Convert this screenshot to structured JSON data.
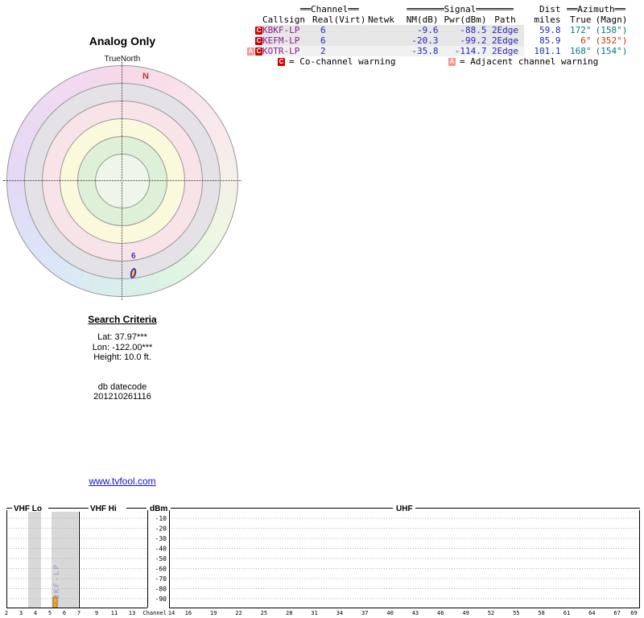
{
  "page": {
    "title": "Analog Only",
    "link": "www.tvfool.com"
  },
  "polar": {
    "true_north_label": "TrueNorth",
    "north_marker": "N",
    "marker_channel": "6"
  },
  "search_criteria": {
    "heading": "Search Criteria",
    "lat": "Lat: 37.97***",
    "lon": "Lon: -122.00***",
    "height": "Height: 10.0 ft.",
    "db_label": "db datecode",
    "db_value": "201210261116"
  },
  "table": {
    "group_headers": {
      "channel": "══Channel══",
      "signal": "═══════Signal═══════",
      "dist": "Dist",
      "azimuth": "══Azimuth══"
    },
    "columns": [
      "Callsign",
      "Real",
      "(Virt)",
      "Netwk",
      "NM(dB)",
      "Pwr(dBm)",
      "Path",
      "miles",
      "True",
      "(Magn)"
    ],
    "rows": [
      {
        "warnings": [
          "C"
        ],
        "callsign": "KBKF-LP",
        "real": "6",
        "virt": "",
        "netwk": "",
        "nm_db": "-9.6",
        "pwr_dbm": "-88.5",
        "path": "2Edge",
        "miles": "59.8",
        "true_az": "172°",
        "magn_az": "(158°)",
        "az_color": "#007b7b",
        "bg": "#e6e6e6"
      },
      {
        "warnings": [
          "C"
        ],
        "callsign": "KEFM-LP",
        "real": "6",
        "virt": "",
        "netwk": "",
        "nm_db": "-20.3",
        "pwr_dbm": "-99.2",
        "path": "2Edge",
        "miles": "85.9",
        "true_az": "6°",
        "magn_az": "(352°)",
        "az_color": "#cc3300",
        "bg": "#e6e6e6"
      },
      {
        "warnings": [
          "A",
          "C"
        ],
        "callsign": "KOTR-LP",
        "real": "2",
        "virt": "",
        "netwk": "",
        "nm_db": "-35.8",
        "pwr_dbm": "-114.7",
        "path": "2Edge",
        "miles": "101.1",
        "true_az": "168°",
        "magn_az": "(154°)",
        "az_color": "#007b7b",
        "bg": "#f1f1f1"
      }
    ],
    "legend": {
      "co_badge": "C",
      "co_text": "= Co-channel warning",
      "adj_badge": "A",
      "adj_text": "= Adjacent channel warning",
      "co_color": "#cc0000",
      "adj_color": "#ff9090"
    },
    "text_colors": {
      "callsign": "#8b1a8b",
      "numeric": "#2222bb"
    }
  },
  "chart_data": [
    {
      "type": "radar",
      "title": "Analog Only",
      "orientation_label": "TrueNorth",
      "north_marker": "N",
      "rings_outer_to_center": [
        "pastel-compass",
        "#e4e2e6",
        "#f8e3e8",
        "#fbf9dc",
        "#dff0d8",
        "#edf6e9"
      ],
      "signals": [
        {
          "callsign": "KBKF-LP",
          "channel": "6",
          "azimuth_true_deg": 172,
          "marker_fill": "#ffcf00",
          "marker_stroke": "#4b2dbb"
        }
      ]
    },
    {
      "type": "spectrum",
      "xlabel": "Channel",
      "ylabel": "dBm",
      "ylim": [
        -90,
        -10
      ],
      "y_ticks": [
        -10,
        -20,
        -30,
        -40,
        -50,
        -60,
        -70,
        -80,
        -90
      ],
      "sections": [
        {
          "label": "VHF Lo",
          "tick_channels": [
            2,
            3,
            4,
            5,
            6
          ]
        },
        {
          "label": "VHF Hi",
          "tick_channels": [
            7,
            9,
            11,
            13
          ]
        },
        {
          "label": "UHF",
          "tick_channels": [
            14,
            16,
            19,
            22,
            25,
            28,
            31,
            34,
            37,
            40,
            43,
            46,
            49,
            52,
            55,
            58,
            61,
            64,
            67,
            69
          ]
        }
      ],
      "shaded_channels": [
        "3",
        "5-6"
      ],
      "signals": [
        {
          "callsign": "KBKF-LP",
          "channel": 6,
          "pwr_dbm": -88.5
        },
        {
          "callsign": "KEFM-LP",
          "channel": 6,
          "pwr_dbm": -99.2
        },
        {
          "callsign": "KOTR-LP",
          "channel": 2,
          "pwr_dbm": -114.7
        }
      ]
    }
  ]
}
